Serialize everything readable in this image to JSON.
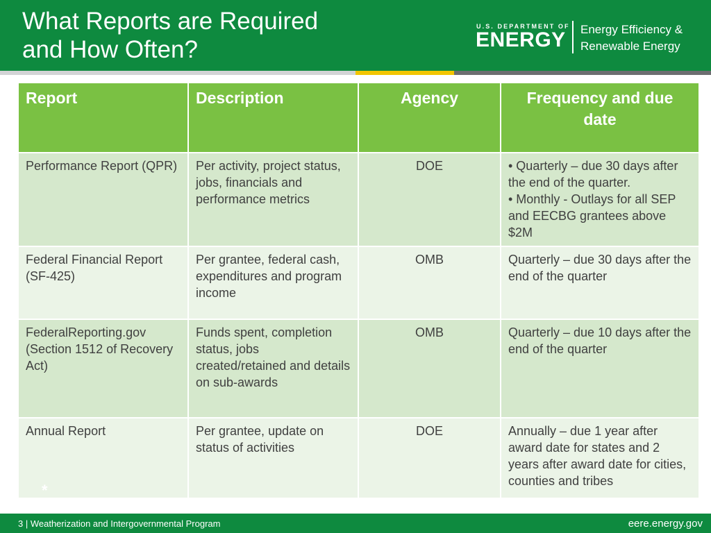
{
  "header": {
    "title_line1": "What Reports are Required",
    "title_line2": "and How Often?",
    "logo_dept": "U.S. DEPARTMENT OF",
    "logo_energy": "ENERGY",
    "logo_eere_line1": "Energy Efficiency &",
    "logo_eere_line2": "Renewable Energy"
  },
  "table": {
    "headers": [
      "Report",
      "Description",
      "Agency",
      "Frequency and due date"
    ],
    "rows": [
      {
        "report": "Performance Report (QPR)",
        "description": "Per activity, project status, jobs, financials and performance metrics",
        "agency": "DOE",
        "frequency": [
          "• Quarterly – due 30 days after the end of the quarter.",
          "• Monthly - Outlays for all SEP and EECBG grantees above $2M"
        ]
      },
      {
        "report": "Federal Financial Report (SF-425)",
        "description": "Per grantee, federal cash, expenditures and program income",
        "agency": "OMB",
        "frequency": [
          "Quarterly – due 30 days after the end of the quarter"
        ]
      },
      {
        "report": "FederalReporting.gov (Section 1512 of Recovery Act)",
        "description": "Funds spent, completion status, jobs created/retained and details on sub-awards",
        "agency": "OMB",
        "frequency": [
          "Quarterly – due 10 days after the end of the quarter"
        ]
      },
      {
        "report": "Annual Report",
        "description": "Per grantee, update on status of activities",
        "agency": "DOE",
        "frequency": [
          "Annually – due 1 year after award date for states and 2 years after award date for cities, counties and tribes"
        ]
      }
    ],
    "asterisk": "*"
  },
  "footer": {
    "left_text": "3 | Weatherization and Intergovernmental Program",
    "right_text": "eere.energy.gov"
  },
  "colors": {
    "brand_green": "#0e8a3f",
    "header_row_green": "#7ac143",
    "row_dark": "#d5e8cc",
    "row_light": "#ebf4e7",
    "accent_yellow": "#f2c500"
  }
}
